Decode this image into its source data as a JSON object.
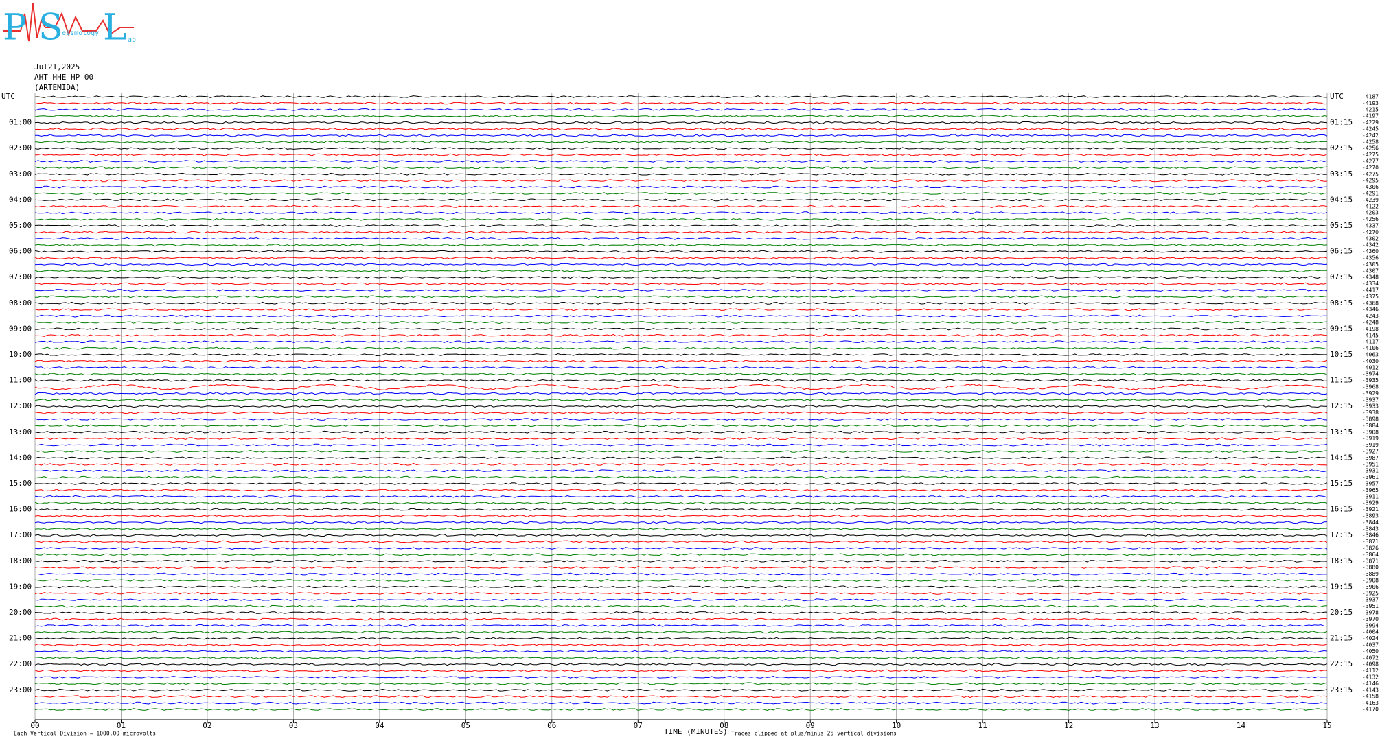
{
  "chart_data": {
    "type": "helicorder",
    "logo": {
      "letters": [
        "P",
        "S",
        "L"
      ],
      "words": [
        "eismology",
        "ab"
      ]
    },
    "date": "Jul21,2025",
    "station": "AHT HHE HP 00",
    "site": "(ARTEMIDA)",
    "left_labels": [
      "UTC",
      "01:00",
      "02:00",
      "03:00",
      "04:00",
      "05:00",
      "06:00",
      "07:00",
      "08:00",
      "09:00",
      "10:00",
      "11:00",
      "12:00",
      "13:00",
      "14:00",
      "15:00",
      "16:00",
      "17:00",
      "18:00",
      "19:00",
      "20:00",
      "21:00",
      "22:00",
      "23:00"
    ],
    "right_labels": [
      "UTC",
      "01:15",
      "02:15",
      "03:15",
      "04:15",
      "05:15",
      "06:15",
      "07:15",
      "08:15",
      "09:15",
      "10:15",
      "11:15",
      "12:15",
      "13:15",
      "14:15",
      "15:15",
      "16:15",
      "17:15",
      "18:15",
      "19:15",
      "20:15",
      "21:15",
      "22:15",
      "23:15"
    ],
    "offsets": [
      -4187,
      -4193,
      -4215,
      -4197,
      -4229,
      -4245,
      -4242,
      -4258,
      -4256,
      -4275,
      -4277,
      -4270,
      -4275,
      -4295,
      -4306,
      -4291,
      -4239,
      -4122,
      -4203,
      -4256,
      -4337,
      -4270,
      -4302,
      -4342,
      -4360,
      -4356,
      -4305,
      -4307,
      -4348,
      -4334,
      -4417,
      -4375,
      -4368,
      -4346,
      -4243,
      -4248,
      -4198,
      -4145,
      -4117,
      -4106,
      -4063,
      -4030,
      -4012,
      -3974,
      -3935,
      -3968,
      -3929,
      -3937,
      -3933,
      -3938,
      -3898,
      -3884,
      -3908,
      -3919,
      -3919,
      -3927,
      -3987,
      -3951,
      -3931,
      -3961,
      -3957,
      -3965,
      -3911,
      -3929,
      -3921,
      -3893,
      -3844,
      -3843,
      -3846,
      -3871,
      -3826,
      -3864,
      -3871,
      -3880,
      -3889,
      -3908,
      -3906,
      -3925,
      -3937,
      -3951,
      -3978,
      -3970,
      -3994,
      -4004,
      -4024,
      -4037,
      -4050,
      -4072,
      -4098,
      -4112,
      -4132,
      -4146,
      -4143,
      -4158,
      -4163,
      -4170
    ],
    "colors": [
      "#000000",
      "#ff0000",
      "#0000ff",
      "#008000"
    ],
    "xlim": [
      0,
      15
    ],
    "xticks": [
      {
        "value": 0,
        "label": "00"
      },
      {
        "value": 1,
        "label": "01"
      },
      {
        "value": 2,
        "label": "02"
      },
      {
        "value": 3,
        "label": "03"
      },
      {
        "value": 4,
        "label": "04"
      },
      {
        "value": 5,
        "label": "05"
      },
      {
        "value": 6,
        "label": "06"
      },
      {
        "value": 7,
        "label": "07"
      },
      {
        "value": 8,
        "label": "08"
      },
      {
        "value": 9,
        "label": "09"
      },
      10,
      11,
      12,
      13,
      14,
      15
    ],
    "xlabel": "TIME (MINUTES)",
    "scale_note": "Each Vertical Division = 1000.00 microvolts",
    "clip_note": "Traces clipped at plus/minus 25 vertical divisions"
  }
}
